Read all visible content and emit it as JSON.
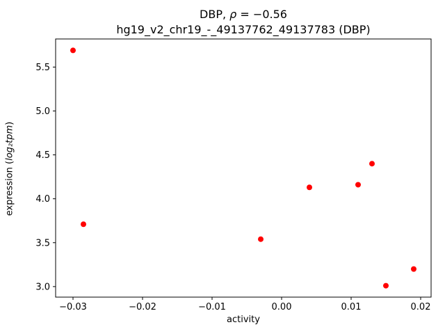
{
  "figure": {
    "title": {
      "prefix": "DBP, ",
      "rho": "ρ",
      "suffix": " = −0.56"
    },
    "subtitle": "hg19_v2_chr19_-_49137762_49137783 (DBP)",
    "xlabel": "activity",
    "ylabel": {
      "prefix": "expression (",
      "math": "log₂tpm",
      "suffix": ")"
    }
  },
  "chart_data": {
    "type": "scatter",
    "title": "DBP, ρ = −0.56",
    "subtitle": "hg19_v2_chr19_-_49137762_49137783 (DBP)",
    "xlabel": "activity",
    "ylabel": "expression (log2tpm)",
    "xlim": [
      -0.0325,
      0.0215
    ],
    "ylim": [
      2.88,
      5.82
    ],
    "grid": false,
    "legend": null,
    "point_color": "#ff0000",
    "axis_color": "#000000",
    "marker_radius": 4,
    "x_ticks": [
      {
        "v": -0.03,
        "label": "−0.03"
      },
      {
        "v": -0.02,
        "label": "−0.02"
      },
      {
        "v": -0.01,
        "label": "−0.01"
      },
      {
        "v": 0.0,
        "label": "0.00"
      },
      {
        "v": 0.01,
        "label": "0.01"
      },
      {
        "v": 0.02,
        "label": "0.02"
      }
    ],
    "y_ticks": [
      {
        "v": 3.0,
        "label": "3.0"
      },
      {
        "v": 3.5,
        "label": "3.5"
      },
      {
        "v": 4.0,
        "label": "4.0"
      },
      {
        "v": 4.5,
        "label": "4.5"
      },
      {
        "v": 5.0,
        "label": "5.0"
      },
      {
        "v": 5.5,
        "label": "5.5"
      }
    ],
    "points": [
      {
        "x": -0.03,
        "y": 5.69
      },
      {
        "x": -0.0285,
        "y": 3.71
      },
      {
        "x": -0.003,
        "y": 3.54
      },
      {
        "x": 0.004,
        "y": 4.13
      },
      {
        "x": 0.011,
        "y": 4.16
      },
      {
        "x": 0.013,
        "y": 4.4
      },
      {
        "x": 0.015,
        "y": 3.01
      },
      {
        "x": 0.019,
        "y": 3.2
      }
    ]
  }
}
